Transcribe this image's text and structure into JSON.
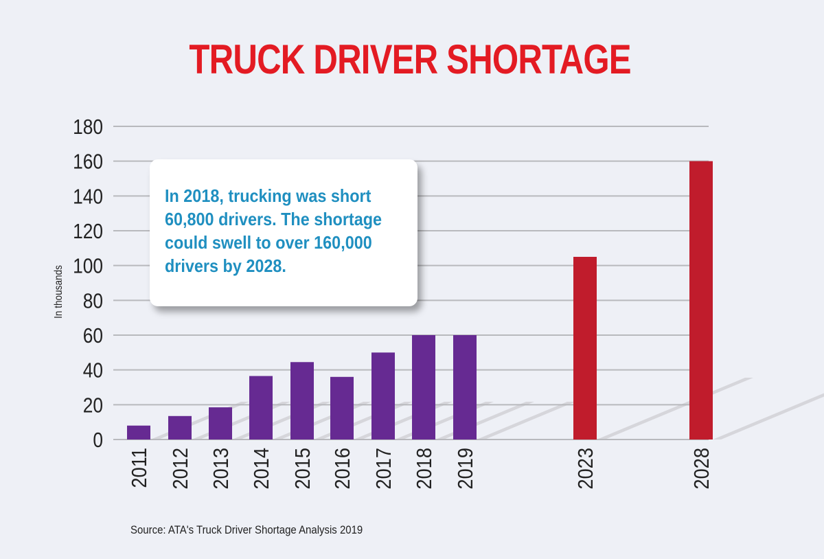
{
  "chart_data": {
    "type": "bar",
    "title": "TRUCK DRIVER SHORTAGE",
    "ylabel": "In thousands",
    "xlabel": "",
    "ylim": [
      0,
      180
    ],
    "yticks": [
      0,
      20,
      40,
      60,
      80,
      100,
      120,
      140,
      160,
      180
    ],
    "grid": true,
    "categories": [
      "2011",
      "2012",
      "2013",
      "2014",
      "2015",
      "2016",
      "2017",
      "2018",
      "2019",
      "2023",
      "2028"
    ],
    "values": [
      8,
      13.5,
      18.5,
      36.5,
      44.5,
      36,
      50,
      60,
      60,
      105,
      160
    ],
    "colors": {
      "actual": "#662a92",
      "projected": "#c01c2c",
      "title": "#e31b23",
      "callout_text": "#1f8fc0"
    },
    "annotation": [
      "In 2018, trucking was short",
      "60,800 drivers. The shortage",
      "could swell to over 160,000",
      "drivers by 2028."
    ],
    "source": "Source: ATA's Truck Driver Shortage Analysis 2019"
  }
}
